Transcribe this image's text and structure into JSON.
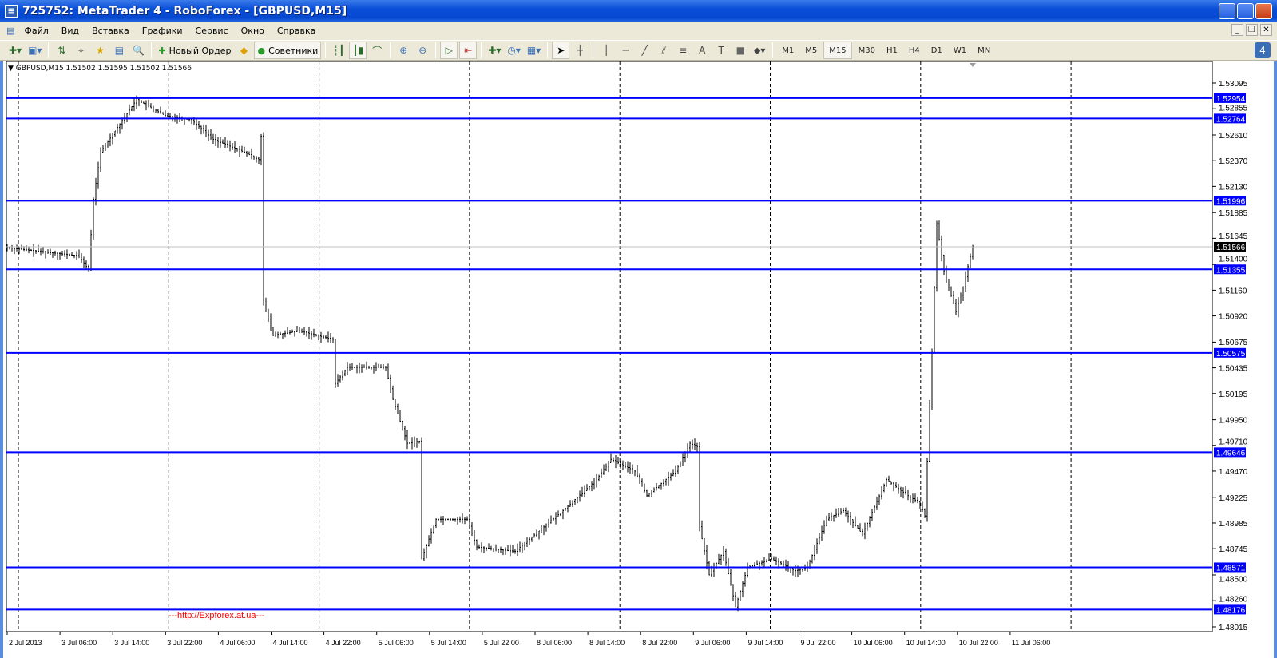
{
  "window": {
    "title": "725752: MetaTrader 4 - RoboForex - [GBPUSD,M15]"
  },
  "menu": [
    "Файл",
    "Вид",
    "Вставка",
    "Графики",
    "Сервис",
    "Окно",
    "Справка"
  ],
  "toolbar": {
    "new_order": "Новый Ордер",
    "experts": "Советники",
    "timeframes": [
      "M1",
      "M5",
      "M15",
      "M30",
      "H1",
      "H4",
      "D1",
      "W1",
      "MN"
    ],
    "active_timeframe": "M15",
    "notifications": "4"
  },
  "chart": {
    "header": "GBPUSD,M15  1.51502 1.51595 1.51502 1.51566",
    "watermark": "---http://Expforex.at.ua---",
    "current_price": "1.51566",
    "colors": {
      "level_line": "#0000ff",
      "bars": "#000000",
      "label_bg": "#0000ff"
    }
  },
  "chart_data": {
    "type": "bar",
    "symbol": "GBPUSD",
    "timeframe": "M15",
    "ylim": [
      1.48015,
      1.53095
    ],
    "y_ticks": [
      "1.53095",
      "1.52855",
      "1.52610",
      "1.52370",
      "1.52130",
      "1.51885",
      "1.51645",
      "1.51400",
      "1.51160",
      "1.50920",
      "1.50675",
      "1.50435",
      "1.50195",
      "1.49950",
      "1.49710",
      "1.49470",
      "1.49225",
      "1.48985",
      "1.48745",
      "1.48500",
      "1.48260",
      "1.48015"
    ],
    "x_ticks": [
      "2 Jul 2013",
      "3 Jul 06:00",
      "3 Jul 14:00",
      "3 Jul 22:00",
      "4 Jul 06:00",
      "4 Jul 14:00",
      "4 Jul 22:00",
      "5 Jul 06:00",
      "5 Jul 14:00",
      "5 Jul 22:00",
      "8 Jul 06:00",
      "8 Jul 14:00",
      "8 Jul 22:00",
      "9 Jul 06:00",
      "9 Jul 14:00",
      "9 Jul 22:00",
      "10 Jul 06:00",
      "10 Jul 14:00",
      "10 Jul 22:00",
      "11 Jul 06:00"
    ],
    "horizontal_levels": [
      "1.52954",
      "1.52764",
      "1.51996",
      "1.51355",
      "1.50575",
      "1.49646",
      "1.48571",
      "1.48176"
    ],
    "price_path": [
      [
        0,
        1.5156
      ],
      [
        31,
        1.5148
      ],
      [
        35,
        1.5135
      ],
      [
        37,
        1.5201
      ],
      [
        40,
        1.5245
      ],
      [
        47,
        1.5268
      ],
      [
        55,
        1.5294
      ],
      [
        67,
        1.5279
      ],
      [
        78,
        1.5275
      ],
      [
        87,
        1.5257
      ],
      [
        100,
        1.5245
      ],
      [
        106,
        1.5238
      ],
      [
        107,
        1.526
      ],
      [
        108,
        1.5104
      ],
      [
        112,
        1.5074
      ],
      [
        123,
        1.5078
      ],
      [
        137,
        1.507
      ],
      [
        138,
        1.5029
      ],
      [
        143,
        1.5044
      ],
      [
        159,
        1.5044
      ],
      [
        162,
        1.5014
      ],
      [
        168,
        1.4973
      ],
      [
        173,
        1.4975
      ],
      [
        174,
        1.4865
      ],
      [
        180,
        1.4902
      ],
      [
        193,
        1.4902
      ],
      [
        197,
        1.4876
      ],
      [
        213,
        1.4872
      ],
      [
        233,
        1.491
      ],
      [
        247,
        1.4939
      ],
      [
        253,
        1.4958
      ],
      [
        263,
        1.4947
      ],
      [
        268,
        1.4924
      ],
      [
        280,
        1.4947
      ],
      [
        286,
        1.4973
      ],
      [
        289,
        1.497
      ],
      [
        290,
        1.4895
      ],
      [
        294,
        1.485
      ],
      [
        300,
        1.4872
      ],
      [
        305,
        1.482
      ],
      [
        310,
        1.4857
      ],
      [
        320,
        1.4865
      ],
      [
        330,
        1.4854
      ],
      [
        335,
        1.4857
      ],
      [
        343,
        1.4902
      ],
      [
        350,
        1.491
      ],
      [
        358,
        1.4888
      ],
      [
        368,
        1.4939
      ],
      [
        377,
        1.4924
      ],
      [
        382,
        1.4917
      ],
      [
        384,
        1.4905
      ],
      [
        387,
        1.5059
      ],
      [
        389,
        1.5178
      ],
      [
        392,
        1.5134
      ],
      [
        397,
        1.5096
      ],
      [
        400,
        1.5119
      ],
      [
        404,
        1.5157
      ]
    ]
  }
}
